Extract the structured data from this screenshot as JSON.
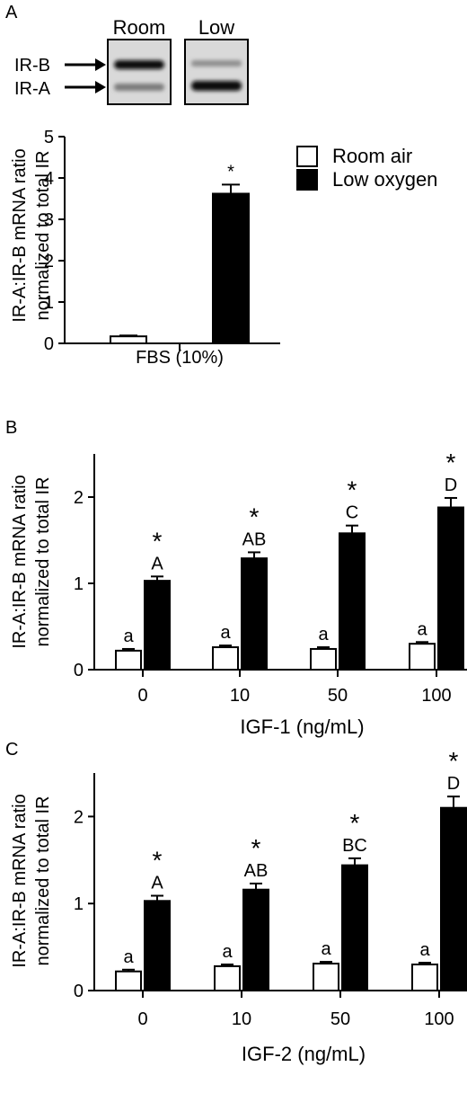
{
  "panels": {
    "a": {
      "letter": "A"
    },
    "b": {
      "letter": "B"
    },
    "c": {
      "letter": "C"
    }
  },
  "blot": {
    "lane_labels": [
      "Room",
      "Low"
    ],
    "band_labels": [
      "IR-B",
      "IR-A"
    ]
  },
  "legend": {
    "room": "Room air",
    "low": "Low oxygen"
  },
  "colors": {
    "room_fill": "#ffffff",
    "low_fill": "#000000",
    "stroke": "#000000"
  },
  "chart_data": [
    {
      "type": "bar",
      "panel": "A",
      "categories": [
        "FBS (10%)"
      ],
      "xlabel": "",
      "ylabel": "IR-A:IR-B mRNA ratio normalized to total IR",
      "ylim": [
        0,
        5
      ],
      "yticks": [
        0,
        1,
        2,
        3,
        4,
        5
      ],
      "series": [
        {
          "name": "Room air",
          "values": [
            0.17
          ],
          "errors": [
            0.02
          ],
          "labels": [
            ""
          ]
        },
        {
          "name": "Low oxygen",
          "values": [
            3.62
          ],
          "errors": [
            0.22
          ],
          "labels": [
            "*"
          ]
        }
      ]
    },
    {
      "type": "bar",
      "panel": "B",
      "categories": [
        "0",
        "10",
        "50",
        "100"
      ],
      "xlabel": "IGF-1 (ng/mL)",
      "ylabel": "IR-A:IR-B mRNA ratio normalized to total IR",
      "ylim": [
        0,
        2.5
      ],
      "yticks": [
        0,
        1,
        2
      ],
      "series": [
        {
          "name": "Room air",
          "values": [
            0.22,
            0.26,
            0.24,
            0.3
          ],
          "errors": [
            0.02,
            0.02,
            0.02,
            0.02
          ],
          "labels": [
            "a",
            "a",
            "a",
            "a"
          ]
        },
        {
          "name": "Low oxygen",
          "values": [
            1.03,
            1.29,
            1.58,
            1.88
          ],
          "errors": [
            0.05,
            0.07,
            0.09,
            0.11
          ],
          "labels": [
            "A",
            "AB",
            "C",
            "D"
          ],
          "stars": [
            "*",
            "*",
            "*",
            "*"
          ]
        }
      ]
    },
    {
      "type": "bar",
      "panel": "C",
      "categories": [
        "0",
        "10",
        "50",
        "100"
      ],
      "xlabel": "IGF-2 (ng/mL)",
      "ylabel": "IR-A:IR-B mRNA ratio normalized to total IR",
      "ylim": [
        0,
        2.5
      ],
      "yticks": [
        0,
        1,
        2
      ],
      "series": [
        {
          "name": "Room air",
          "values": [
            0.22,
            0.28,
            0.31,
            0.3
          ],
          "errors": [
            0.02,
            0.02,
            0.02,
            0.02
          ],
          "labels": [
            "a",
            "a",
            "a",
            "a"
          ]
        },
        {
          "name": "Low oxygen",
          "values": [
            1.03,
            1.16,
            1.44,
            2.1
          ],
          "errors": [
            0.06,
            0.07,
            0.08,
            0.13
          ],
          "labels": [
            "A",
            "AB",
            "BC",
            "D"
          ],
          "stars": [
            "*",
            "*",
            "*",
            "*"
          ]
        }
      ]
    }
  ]
}
